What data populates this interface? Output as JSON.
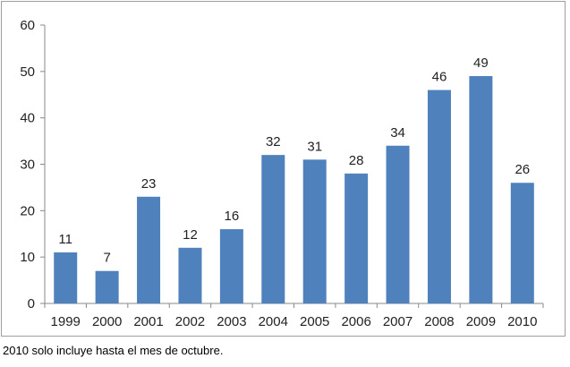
{
  "chart_data": {
    "type": "bar",
    "categories": [
      "1999",
      "2000",
      "2001",
      "2002",
      "2003",
      "2004",
      "2005",
      "2006",
      "2007",
      "2008",
      "2009",
      "2010"
    ],
    "values": [
      11,
      7,
      23,
      12,
      16,
      32,
      31,
      28,
      34,
      46,
      49,
      26
    ],
    "title": "",
    "xlabel": "",
    "ylabel": "",
    "ylim": [
      0,
      60
    ],
    "yticks": [
      0,
      10,
      20,
      30,
      40,
      50,
      60
    ],
    "grid": false,
    "legend": "none",
    "bar_color": "#4f81bd",
    "data_labels": true
  },
  "footnote": "2010 solo incluye hasta el mes de octubre."
}
